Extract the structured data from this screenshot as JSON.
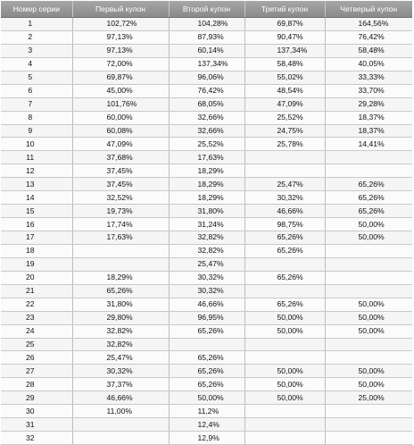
{
  "table": {
    "headers": [
      "Номер серии",
      "Первый купон",
      "Второй купон",
      "Третий купон",
      "Четверый купон"
    ],
    "rows": [
      [
        "1",
        "102,72%",
        "104,28%",
        "69,87%",
        "164,56%"
      ],
      [
        "2",
        "97,13%",
        "87,93%",
        "90,47%",
        "76,42%"
      ],
      [
        "3",
        "97,13%",
        "60,14%",
        "137,34%",
        "58,48%"
      ],
      [
        "4",
        "72,00%",
        "137,34%",
        "58,48%",
        "40,05%"
      ],
      [
        "5",
        "69,87%",
        "96,06%",
        "55,02%",
        "33,33%"
      ],
      [
        "6",
        "45,00%",
        "76,42%",
        "48,54%",
        "33,70%"
      ],
      [
        "7",
        "101,76%",
        "68,05%",
        "47,09%",
        "29,28%"
      ],
      [
        "8",
        "60,00%",
        "32,66%",
        "25,52%",
        "18,37%"
      ],
      [
        "9",
        "60,08%",
        "32,66%",
        "24,75%",
        "18,37%"
      ],
      [
        "10",
        "47,09%",
        "25,52%",
        "25,78%",
        "14,41%"
      ],
      [
        "11",
        "37,68%",
        "17,63%",
        "",
        ""
      ],
      [
        "12",
        "37,45%",
        "18,29%",
        "",
        ""
      ],
      [
        "13",
        "37,45%",
        "18,29%",
        "25,47%",
        "65,26%"
      ],
      [
        "14",
        "32,52%",
        "18,29%",
        "30,32%",
        "65,26%"
      ],
      [
        "15",
        "19,73%",
        "31,80%",
        "46,66%",
        "65,26%"
      ],
      [
        "16",
        "17,74%",
        "31,24%",
        "98,75%",
        "50,00%"
      ],
      [
        "17",
        "17,63%",
        "32,82%",
        "65,26%",
        "50,00%"
      ],
      [
        "18",
        "",
        "32,82%",
        "65,26%",
        ""
      ],
      [
        "19",
        "",
        "25,47%",
        "",
        ""
      ],
      [
        "20",
        "18,29%",
        "30,32%",
        "65,26%",
        ""
      ],
      [
        "21",
        "65,26%",
        "30,32%",
        "",
        ""
      ],
      [
        "22",
        "31,80%",
        "46,66%",
        "65,26%",
        "50,00%"
      ],
      [
        "23",
        "29,80%",
        "96,95%",
        "50,00%",
        "50,00%"
      ],
      [
        "24",
        "32,82%",
        "65,26%",
        "50,00%",
        "50,00%"
      ],
      [
        "25",
        "32,82%",
        "",
        "",
        ""
      ],
      [
        "26",
        "25,47%",
        "65,26%",
        "",
        ""
      ],
      [
        "27",
        "30,32%",
        "65,26%",
        "50,00%",
        "50,00%"
      ],
      [
        "28",
        "37,37%",
        "65,26%",
        "50,00%",
        "50,00%"
      ],
      [
        "29",
        "46,66%",
        "50,00%",
        "50,00%",
        "25,00%"
      ],
      [
        "30",
        "11,00%",
        "11,2%",
        "",
        ""
      ],
      [
        "31",
        "",
        "12,4%",
        "",
        ""
      ],
      [
        "32",
        "",
        "12,9%",
        "",
        ""
      ]
    ]
  }
}
